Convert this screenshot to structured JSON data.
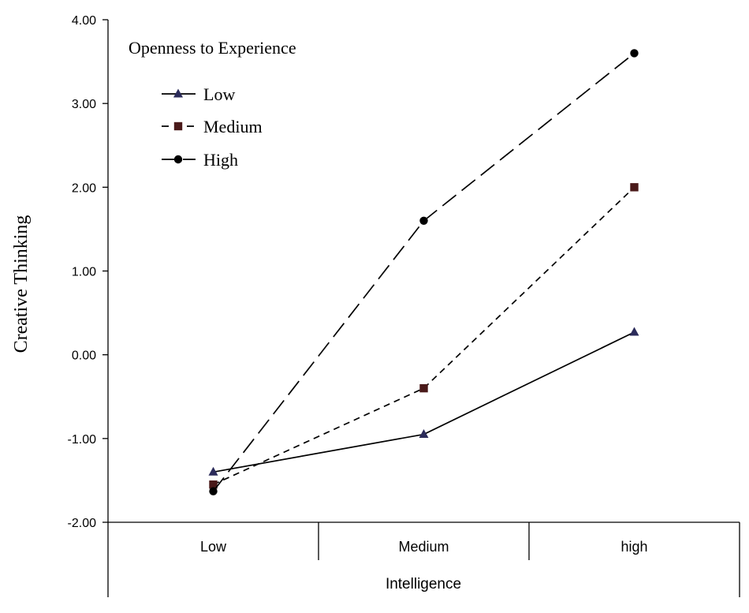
{
  "chart_data": {
    "type": "line",
    "title": "",
    "xlabel": "Intelligence",
    "ylabel": "Creative Thinking",
    "categories": [
      "Low",
      "Medium",
      "high"
    ],
    "ylim": [
      -2.0,
      4.0
    ],
    "yticks": [
      -2.0,
      -1.0,
      0.0,
      1.0,
      2.0,
      3.0,
      4.0
    ],
    "ytick_labels": [
      "-2.00",
      "-1.00",
      "0.00",
      "1.00",
      "2.00",
      "3.00",
      "4.00"
    ],
    "legend_title": "Openness to Experience",
    "legend_position": "top-left",
    "grid": false,
    "series": [
      {
        "name": "Low",
        "marker": "triangle",
        "line_style": "solid",
        "color": "#000000",
        "marker_color": "#2b2b5a",
        "values": [
          -1.4,
          -0.95,
          0.27
        ]
      },
      {
        "name": "Medium",
        "marker": "square",
        "line_style": "dashed-short",
        "color": "#000000",
        "marker_color": "#4a1a1a",
        "values": [
          -1.55,
          -0.4,
          2.0
        ]
      },
      {
        "name": "High",
        "marker": "circle",
        "line_style": "dashed-long",
        "color": "#000000",
        "marker_color": "#000000",
        "values": [
          -1.63,
          1.6,
          3.6
        ]
      }
    ]
  }
}
